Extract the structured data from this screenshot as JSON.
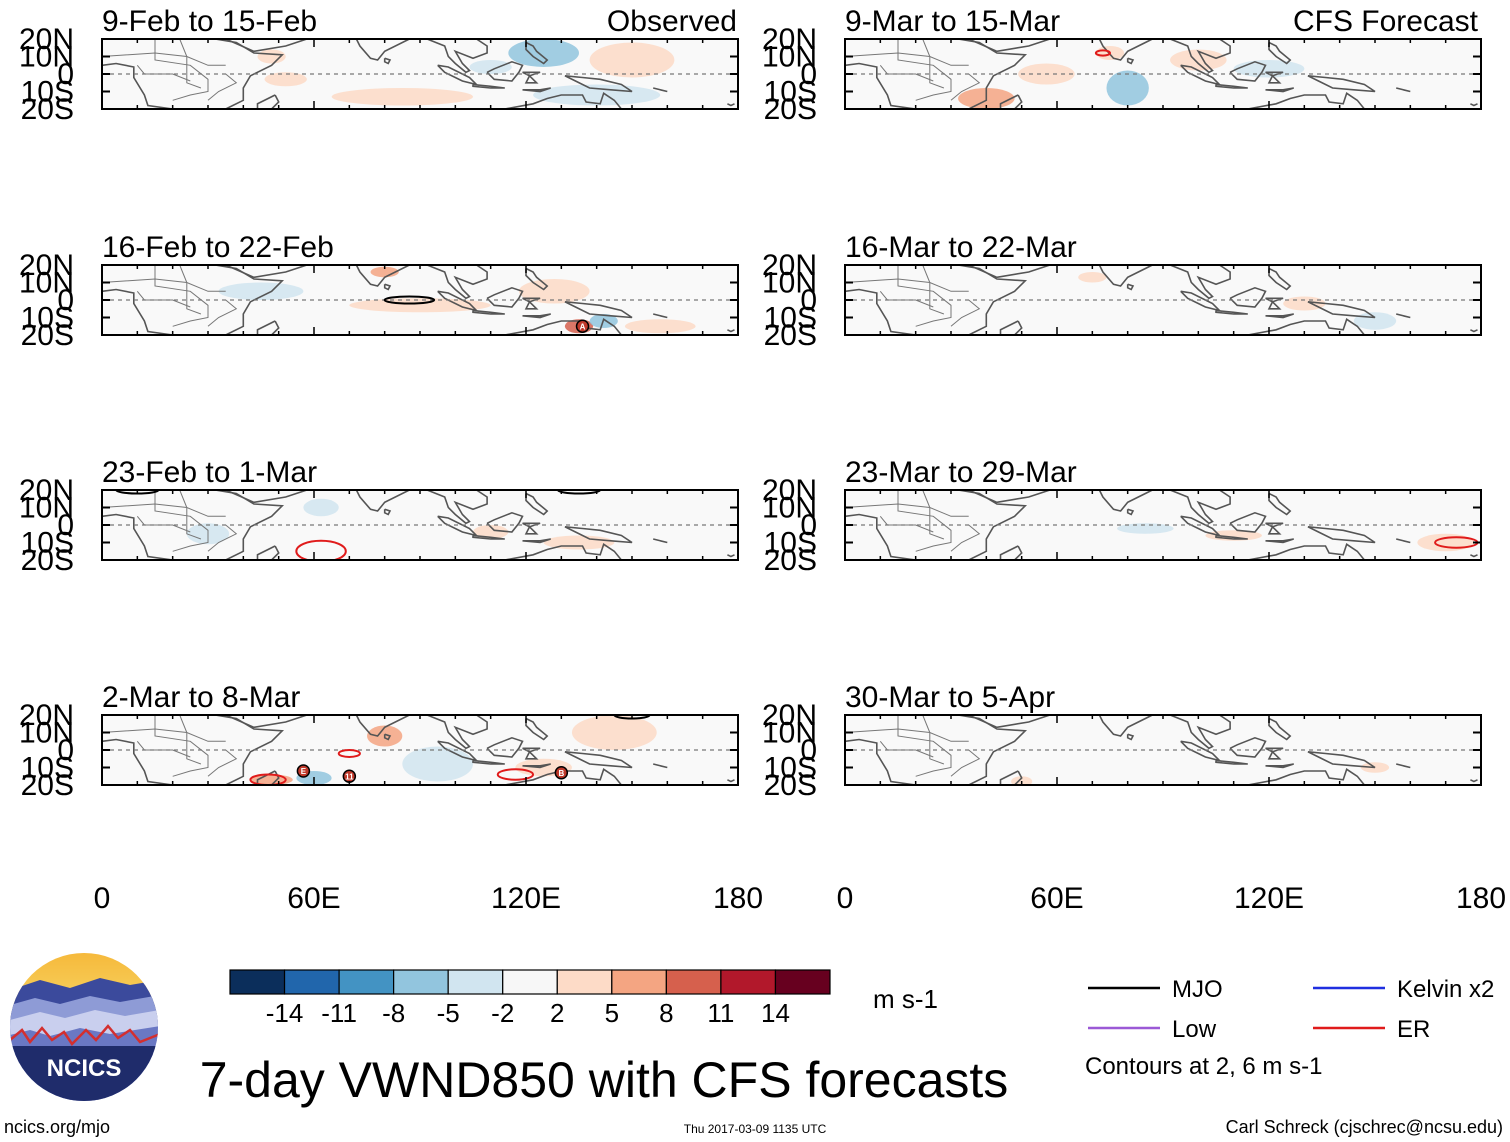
{
  "title": "7-day VWND850 with CFS forecasts",
  "columns": {
    "left": {
      "label": "Observed"
    },
    "right": {
      "label": "CFS Forecast"
    }
  },
  "panels": [
    {
      "period": "9-Feb to 15-Feb",
      "column": "left"
    },
    {
      "period": "16-Feb to 22-Feb",
      "column": "left"
    },
    {
      "period": "23-Feb to 1-Mar",
      "column": "left"
    },
    {
      "period": "2-Mar to 8-Mar",
      "column": "left"
    },
    {
      "period": "9-Mar to 15-Mar",
      "column": "right"
    },
    {
      "period": "16-Mar to 22-Mar",
      "column": "right"
    },
    {
      "period": "23-Mar to 29-Mar",
      "column": "right"
    },
    {
      "period": "30-Mar to 5-Apr",
      "column": "right"
    }
  ],
  "axes": {
    "lat_labels": [
      "20N",
      "10N",
      "0",
      "10S",
      "20S"
    ],
    "lat_values": [
      20,
      10,
      0,
      -10,
      -20
    ],
    "lon_labels": [
      "0",
      "60E",
      "120E",
      "180"
    ],
    "lon_values": [
      0,
      60,
      120,
      180
    ],
    "lon_range": [
      0,
      180
    ],
    "lat_range": [
      -20,
      20
    ]
  },
  "colorbar": {
    "units": "m s-1",
    "tick_labels": [
      "-14",
      "-11",
      "-8",
      "-5",
      "-2",
      "2",
      "5",
      "8",
      "11",
      "14"
    ],
    "colors": [
      "#0b2e5b",
      "#2166ac",
      "#4393c3",
      "#92c5de",
      "#d1e5f0",
      "#f7f7f7",
      "#fddbc7",
      "#f4a582",
      "#d6604d",
      "#b2182b",
      "#67001f"
    ]
  },
  "legend": {
    "items": [
      {
        "label": "MJO",
        "color": "#000000"
      },
      {
        "label": "Kelvin x2",
        "color": "#1f2fe0"
      },
      {
        "label": "Low",
        "color": "#9b59d6"
      },
      {
        "label": "ER",
        "color": "#e01b1b"
      }
    ],
    "note": "Contours at 2, 6 m s-1"
  },
  "logo": {
    "text": "NCICS"
  },
  "footer": {
    "url": "ncics.org/mjo",
    "timestamp": "Thu 2017-03-09 1135 UTC",
    "credit": "Carl Schreck (cjschrec@ncsu.edu)"
  },
  "features": {
    "mjo": [
      {
        "panel": 1,
        "lon": 87,
        "lat": 0,
        "rlon": 7,
        "rlat": 2
      },
      {
        "panel": 2,
        "lon": 10,
        "lat": 20,
        "rlon": 6,
        "rlat": 2
      },
      {
        "panel": 2,
        "lon": 135,
        "lat": 20,
        "rlon": 6,
        "rlat": 2
      },
      {
        "panel": 3,
        "lon": 150,
        "lat": 20,
        "rlon": 5,
        "rlat": 2
      }
    ],
    "er": [
      {
        "panel": 2,
        "lon": 62,
        "lat": -15,
        "rlon": 7,
        "rlat": 6
      },
      {
        "panel": 3,
        "lon": 47,
        "lat": -17,
        "rlon": 5,
        "rlat": 3
      },
      {
        "panel": 3,
        "lon": 70,
        "lat": -2,
        "rlon": 3,
        "rlat": 2
      },
      {
        "panel": 3,
        "lon": 117,
        "lat": -14,
        "rlon": 5,
        "rlat": 3
      },
      {
        "panel": 4,
        "lon": 73,
        "lat": 12,
        "rlon": 2,
        "rlat": 1.5
      },
      {
        "panel": 6,
        "lon": 173,
        "lat": -10,
        "rlon": 6,
        "rlat": 3
      }
    ],
    "storms": [
      {
        "panel": 1,
        "lon": 136,
        "lat": -15,
        "letter": "A"
      },
      {
        "panel": 3,
        "lon": 57,
        "lat": -12,
        "letter": "E"
      },
      {
        "panel": 3,
        "lon": 70,
        "lat": -15,
        "letter": "11"
      },
      {
        "panel": 3,
        "lon": 130,
        "lat": -13,
        "letter": "B"
      }
    ],
    "anomalies": [
      {
        "panel": 0,
        "lon": 125,
        "lat": 12,
        "rlon": 10,
        "rlat": 8,
        "value": -6
      },
      {
        "panel": 0,
        "lon": 150,
        "lat": 8,
        "rlon": 12,
        "rlat": 10,
        "value": 3
      },
      {
        "panel": 0,
        "lon": 85,
        "lat": -13,
        "rlon": 20,
        "rlat": 5,
        "value": 3
      },
      {
        "panel": 0,
        "lon": 140,
        "lat": -12,
        "rlon": 18,
        "rlat": 6,
        "value": -3
      },
      {
        "panel": 0,
        "lon": 52,
        "lat": -3,
        "rlon": 6,
        "rlat": 4,
        "value": 3
      },
      {
        "panel": 0,
        "lon": 48,
        "lat": 10,
        "rlon": 4,
        "rlat": 4,
        "value": 3
      },
      {
        "panel": 0,
        "lon": 110,
        "lat": 4,
        "rlon": 6,
        "rlat": 4,
        "value": -3
      },
      {
        "panel": 1,
        "lon": 135,
        "lat": -15,
        "rlon": 4,
        "rlat": 4,
        "value": 10
      },
      {
        "panel": 1,
        "lon": 128,
        "lat": 5,
        "rlon": 10,
        "rlat": 7,
        "value": 3
      },
      {
        "panel": 1,
        "lon": 90,
        "lat": -3,
        "rlon": 20,
        "rlat": 4,
        "value": 3
      },
      {
        "panel": 1,
        "lon": 158,
        "lat": -15,
        "rlon": 10,
        "rlat": 4,
        "value": 3
      },
      {
        "panel": 1,
        "lon": 80,
        "lat": 16,
        "rlon": 4,
        "rlat": 3,
        "value": 6
      },
      {
        "panel": 1,
        "lon": 45,
        "lat": 5,
        "rlon": 12,
        "rlat": 5,
        "value": -3
      },
      {
        "panel": 1,
        "lon": 142,
        "lat": -12,
        "rlon": 4,
        "rlat": 4,
        "value": -6
      },
      {
        "panel": 2,
        "lon": 110,
        "lat": -4,
        "rlon": 5,
        "rlat": 4,
        "value": 3
      },
      {
        "panel": 2,
        "lon": 62,
        "lat": 10,
        "rlon": 5,
        "rlat": 5,
        "value": -3
      },
      {
        "panel": 2,
        "lon": 135,
        "lat": -10,
        "rlon": 10,
        "rlat": 4,
        "value": 3
      },
      {
        "panel": 2,
        "lon": 30,
        "lat": -5,
        "rlon": 6,
        "rlat": 6,
        "value": -3
      },
      {
        "panel": 3,
        "lon": 80,
        "lat": 8,
        "rlon": 5,
        "rlat": 6,
        "value": 6
      },
      {
        "panel": 3,
        "lon": 145,
        "lat": 10,
        "rlon": 12,
        "rlat": 10,
        "value": 3
      },
      {
        "panel": 3,
        "lon": 95,
        "lat": -8,
        "rlon": 10,
        "rlat": 10,
        "value": -3
      },
      {
        "panel": 3,
        "lon": 60,
        "lat": -16,
        "rlon": 5,
        "rlat": 4,
        "value": -6
      },
      {
        "panel": 3,
        "lon": 48,
        "lat": -17,
        "rlon": 6,
        "rlat": 3,
        "value": 5
      },
      {
        "panel": 3,
        "lon": 125,
        "lat": -10,
        "rlon": 8,
        "rlat": 5,
        "value": 3
      },
      {
        "panel": 4,
        "lon": 80,
        "lat": -8,
        "rlon": 6,
        "rlat": 10,
        "value": -6
      },
      {
        "panel": 4,
        "lon": 40,
        "lat": -14,
        "rlon": 8,
        "rlat": 6,
        "value": 6
      },
      {
        "panel": 4,
        "lon": 57,
        "lat": 0,
        "rlon": 8,
        "rlat": 6,
        "value": 3
      },
      {
        "panel": 4,
        "lon": 100,
        "lat": 8,
        "rlon": 8,
        "rlat": 6,
        "value": 3
      },
      {
        "panel": 4,
        "lon": 120,
        "lat": 3,
        "rlon": 10,
        "rlat": 5,
        "value": -3
      },
      {
        "panel": 4,
        "lon": 75,
        "lat": 12,
        "rlon": 4,
        "rlat": 4,
        "value": 3
      },
      {
        "panel": 5,
        "lon": 130,
        "lat": -2,
        "rlon": 6,
        "rlat": 4,
        "value": 3
      },
      {
        "panel": 5,
        "lon": 150,
        "lat": -12,
        "rlon": 6,
        "rlat": 5,
        "value": -3
      },
      {
        "panel": 5,
        "lon": 70,
        "lat": 13,
        "rlon": 4,
        "rlat": 3,
        "value": 3
      },
      {
        "panel": 6,
        "lon": 85,
        "lat": -2,
        "rlon": 8,
        "rlat": 3,
        "value": -3
      },
      {
        "panel": 6,
        "lon": 110,
        "lat": -6,
        "rlon": 8,
        "rlat": 3,
        "value": 3
      },
      {
        "panel": 6,
        "lon": 170,
        "lat": -10,
        "rlon": 8,
        "rlat": 5,
        "value": 3
      },
      {
        "panel": 7,
        "lon": 50,
        "lat": -18,
        "rlon": 3,
        "rlat": 3,
        "value": 3
      },
      {
        "panel": 7,
        "lon": 150,
        "lat": -10,
        "rlon": 4,
        "rlat": 3,
        "value": 3
      }
    ]
  }
}
